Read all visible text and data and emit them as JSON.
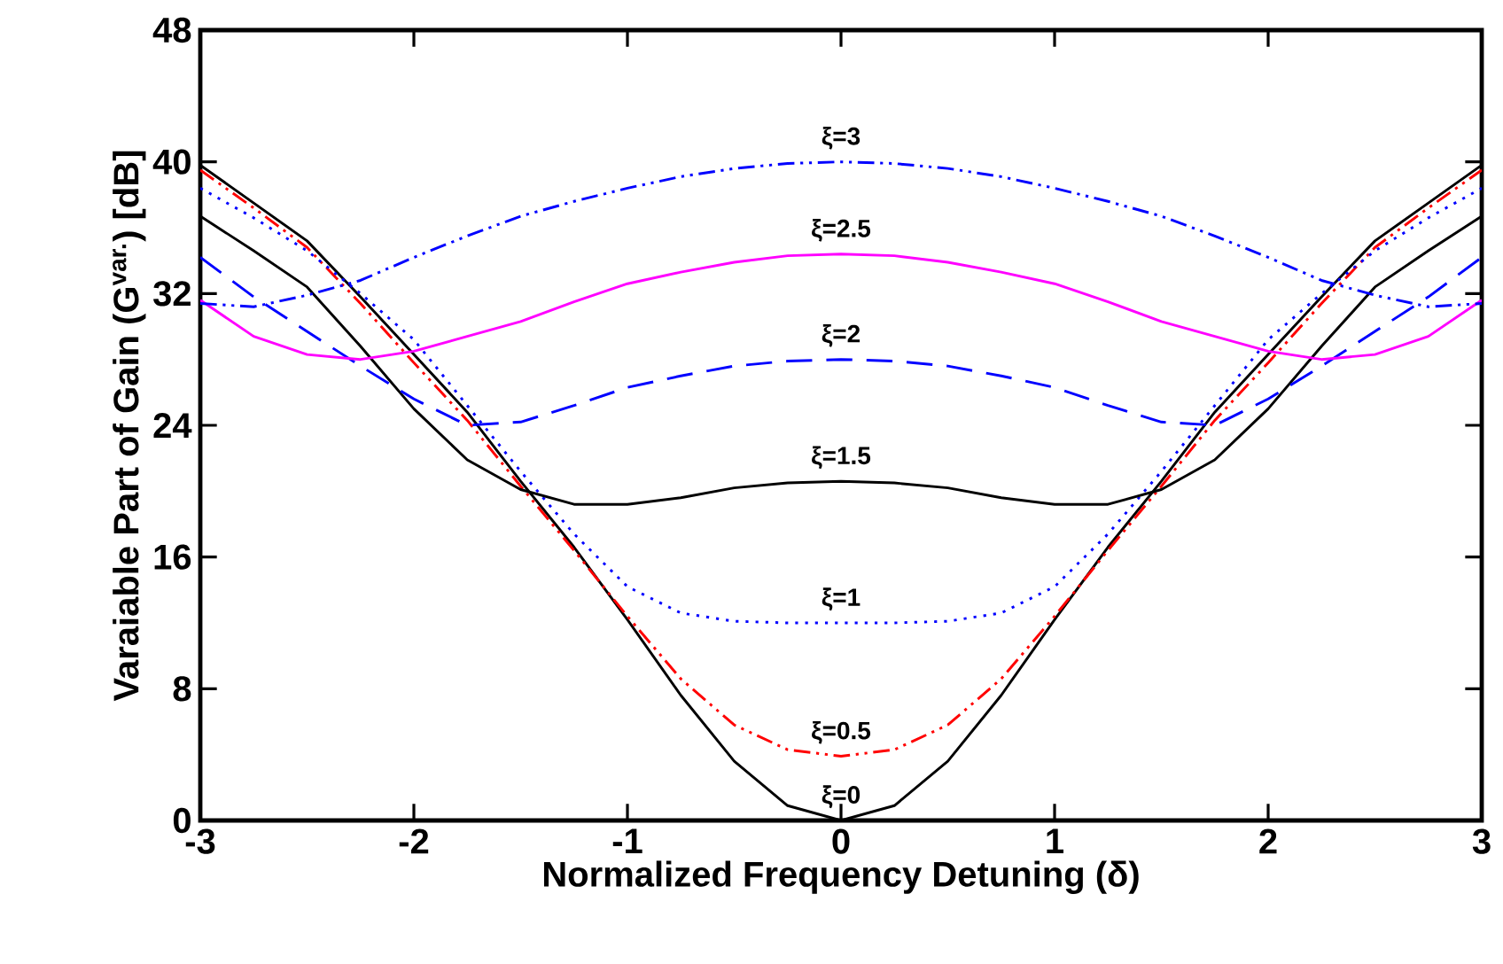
{
  "chart_data": {
    "type": "line",
    "xlabel": "Normalized Frequency Detuning (δ)",
    "ylabel": "Varaiable Part of Gain (G$^{var.}$) [dB]",
    "x": [
      -3,
      -2.75,
      -2.5,
      -2.25,
      -2,
      -1.75,
      -1.5,
      -1.25,
      -1,
      -0.75,
      -0.5,
      -0.25,
      0,
      0.25,
      0.5,
      0.75,
      1,
      1.25,
      1.5,
      1.75,
      2,
      2.25,
      2.5,
      2.75,
      3
    ],
    "xlim": [
      -3,
      3
    ],
    "ylim": [
      0,
      48
    ],
    "xticks": [
      -3,
      -2,
      -1,
      0,
      1,
      2,
      3
    ],
    "yticks": [
      0,
      8,
      16,
      24,
      32,
      40,
      48
    ],
    "grid": false,
    "marker": "none",
    "series": [
      {
        "name": "ξ=0",
        "color": "#000000",
        "line_style": "solid",
        "values": [
          39.8,
          37.5,
          35.2,
          31.8,
          28.3,
          24.8,
          20.6,
          16.6,
          12.2,
          7.6,
          3.6,
          0.9,
          0,
          0.9,
          3.6,
          7.6,
          12.2,
          16.6,
          20.6,
          24.8,
          28.3,
          31.8,
          35.2,
          37.5,
          39.8
        ]
      },
      {
        "name": "ξ=0.5",
        "color": "#ff0000",
        "line_style": "dashdotdotted",
        "values": [
          39.5,
          37.2,
          34.8,
          31.4,
          27.8,
          24.3,
          20.3,
          16.4,
          12.4,
          8.6,
          5.8,
          4.3,
          3.9,
          4.3,
          5.8,
          8.6,
          12.4,
          16.4,
          20.3,
          24.3,
          27.8,
          31.4,
          34.8,
          37.2,
          39.5
        ]
      },
      {
        "name": "ξ=1",
        "color": "#0000ff",
        "line_style": "dotted",
        "values": [
          38.4,
          36.6,
          34.6,
          32.0,
          29.2,
          25.2,
          21.2,
          17.4,
          14.2,
          12.6,
          12.1,
          12.0,
          12.0,
          12.0,
          12.1,
          12.6,
          14.2,
          17.4,
          21.2,
          25.2,
          29.2,
          32.0,
          34.6,
          36.6,
          38.4
        ]
      },
      {
        "name": "ξ=1.5",
        "color": "#000000",
        "line_style": "solid",
        "values": [
          36.7,
          34.6,
          32.4,
          28.8,
          25.0,
          21.9,
          20.1,
          19.2,
          19.2,
          19.6,
          20.2,
          20.5,
          20.6,
          20.5,
          20.2,
          19.6,
          19.2,
          19.2,
          20.1,
          21.9,
          25.0,
          28.8,
          32.4,
          34.6,
          36.7
        ]
      },
      {
        "name": "ξ=2",
        "color": "#0000ff",
        "line_style": "dashed",
        "values": [
          34.2,
          31.8,
          29.7,
          27.6,
          25.6,
          24.0,
          24.2,
          25.2,
          26.3,
          27.0,
          27.6,
          27.9,
          28.0,
          27.9,
          27.6,
          27.0,
          26.3,
          25.2,
          24.2,
          24.0,
          25.6,
          27.6,
          29.7,
          31.8,
          34.2
        ]
      },
      {
        "name": "ξ=2.5",
        "color": "#ff00ff",
        "line_style": "solid",
        "values": [
          31.6,
          29.4,
          28.3,
          28.0,
          28.5,
          29.4,
          30.3,
          31.5,
          32.6,
          33.3,
          33.9,
          34.3,
          34.4,
          34.3,
          33.9,
          33.3,
          32.6,
          31.5,
          30.3,
          29.4,
          28.5,
          28.0,
          28.3,
          29.4,
          31.6
        ]
      },
      {
        "name": "ξ=3",
        "color": "#0000ff",
        "line_style": "dashdotdotted",
        "values": [
          31.4,
          31.2,
          31.9,
          32.8,
          34.2,
          35.5,
          36.7,
          37.6,
          38.4,
          39.1,
          39.6,
          39.9,
          40.0,
          39.9,
          39.6,
          39.1,
          38.4,
          37.6,
          36.7,
          35.5,
          34.2,
          32.8,
          31.9,
          31.2,
          31.4
        ]
      }
    ]
  }
}
